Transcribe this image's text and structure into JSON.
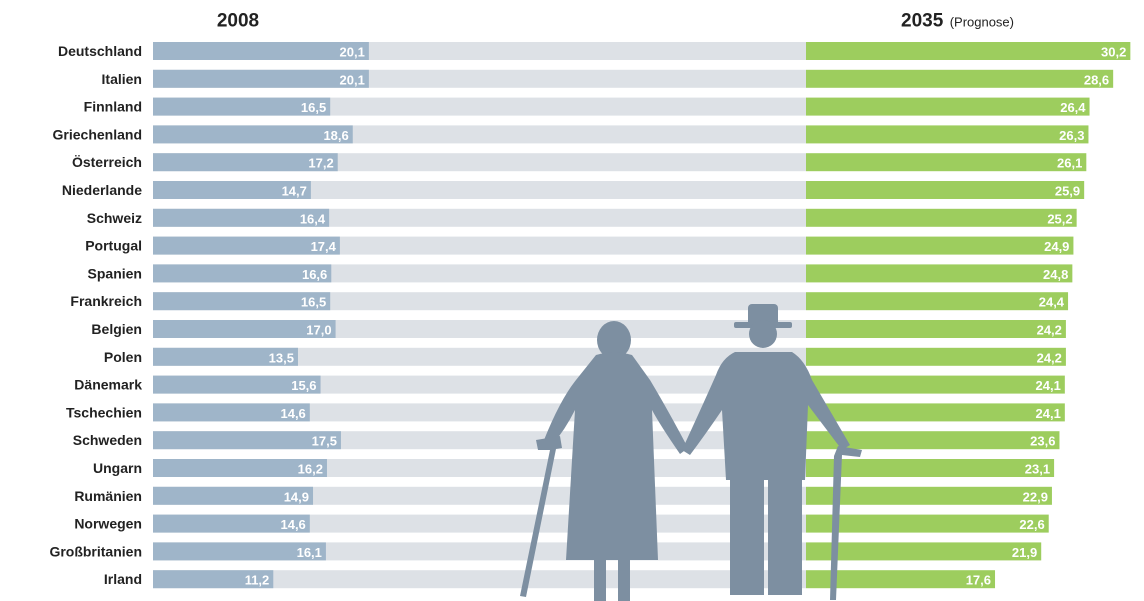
{
  "chart_data": {
    "type": "bar",
    "categories": [
      "Deutschland",
      "Italien",
      "Finnland",
      "Griechenland",
      "Österreich",
      "Niederlande",
      "Schweiz",
      "Portugal",
      "Spanien",
      "Frankreich",
      "Belgien",
      "Polen",
      "Dänemark",
      "Tschechien",
      "Schweden",
      "Ungarn",
      "Rumänien",
      "Norwegen",
      "Großbritanien",
      "Irland"
    ],
    "series": [
      {
        "name": "2008",
        "color": "#9fb5c9",
        "values": [
          20.1,
          20.1,
          16.5,
          18.6,
          17.2,
          14.7,
          16.4,
          17.4,
          16.6,
          16.5,
          17.0,
          13.5,
          15.6,
          14.6,
          17.5,
          16.2,
          14.9,
          14.6,
          16.1,
          11.2
        ],
        "value_labels": [
          "20,1",
          "20,1",
          "16,5",
          "18,6",
          "17,2",
          "14,7",
          "16,4",
          "17,4",
          "16,6",
          "16,5",
          "17,0",
          "13,5",
          "15,6",
          "14,6",
          "17,5",
          "16,2",
          "14,9",
          "14,6",
          "16,1",
          "11,2"
        ]
      },
      {
        "name": "2035",
        "note": "(Prognose)",
        "color": "#9dcd5e",
        "values": [
          30.2,
          28.6,
          26.4,
          26.3,
          26.1,
          25.9,
          25.2,
          24.9,
          24.8,
          24.4,
          24.2,
          24.2,
          24.1,
          24.1,
          23.6,
          23.1,
          22.9,
          22.6,
          21.9,
          17.6
        ],
        "value_labels": [
          "30,2",
          "28,6",
          "26,4",
          "26,3",
          "26,1",
          "25,9",
          "25,2",
          "24,9",
          "24,8",
          "24,4",
          "24,2",
          "24,2",
          "24,1",
          "24,1",
          "23,6",
          "23,1",
          "22,9",
          "22,6",
          "21,9",
          "17,6"
        ]
      }
    ]
  }
}
